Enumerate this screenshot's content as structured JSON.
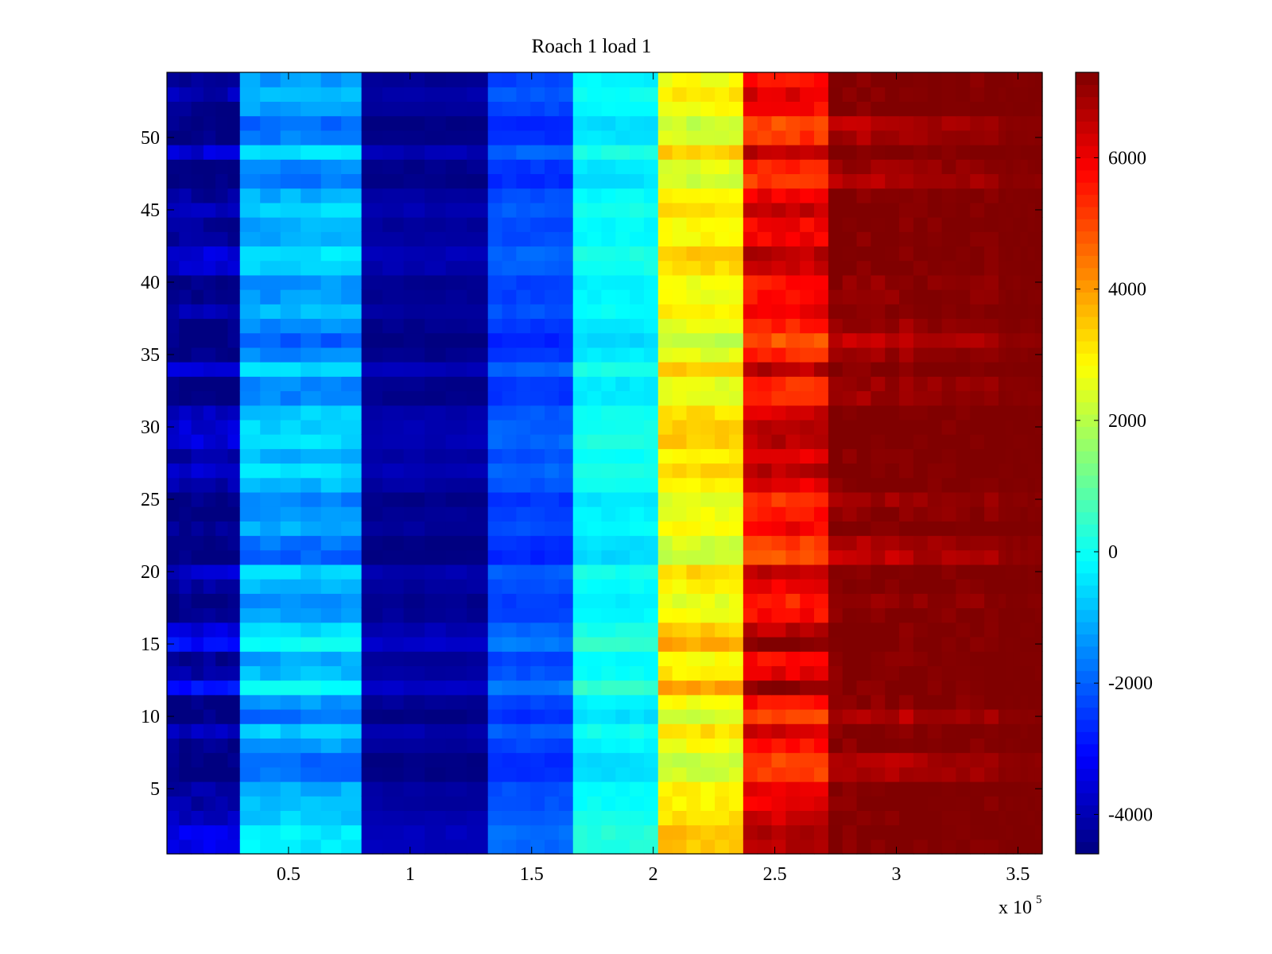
{
  "chart_data": {
    "type": "heatmap",
    "title": "Roach 1 load 1",
    "xlabel": "",
    "ylabel": "",
    "x_exponent_label": {
      "base": "x 10",
      "exponent": "5"
    },
    "xlim": [
      0,
      360000
    ],
    "ylim": [
      0.5,
      54.5
    ],
    "x_ticks": [
      {
        "value": 50000,
        "label": "0.5"
      },
      {
        "value": 100000,
        "label": "1"
      },
      {
        "value": 150000,
        "label": "1.5"
      },
      {
        "value": 200000,
        "label": "2"
      },
      {
        "value": 250000,
        "label": "2.5"
      },
      {
        "value": 300000,
        "label": "3"
      },
      {
        "value": 350000,
        "label": "3.5"
      }
    ],
    "y_ticks": [
      {
        "value": 5,
        "label": "5"
      },
      {
        "value": 10,
        "label": "10"
      },
      {
        "value": 15,
        "label": "15"
      },
      {
        "value": 20,
        "label": "20"
      },
      {
        "value": 25,
        "label": "25"
      },
      {
        "value": 30,
        "label": "30"
      },
      {
        "value": 35,
        "label": "35"
      },
      {
        "value": 40,
        "label": "40"
      },
      {
        "value": 45,
        "label": "45"
      },
      {
        "value": 50,
        "label": "50"
      }
    ],
    "colorbar": {
      "colormap": "jet",
      "clim": [
        -4600,
        7300
      ],
      "ticks": [
        {
          "value": -4000,
          "label": "-4000"
        },
        {
          "value": -2000,
          "label": "-2000"
        },
        {
          "value": 0,
          "label": "0"
        },
        {
          "value": 2000,
          "label": "2000"
        },
        {
          "value": 4000,
          "label": "4000"
        },
        {
          "value": 6000,
          "label": "6000"
        }
      ]
    },
    "rows": 54,
    "x_segments": [
      {
        "x_start": 0,
        "x_end": 30000,
        "base_value": -4400,
        "row_variation": 1600
      },
      {
        "x_start": 30000,
        "x_end": 80000,
        "base_value": -1200,
        "row_variation": 1400
      },
      {
        "x_start": 80000,
        "x_end": 132000,
        "base_value": -4300,
        "row_variation": 600
      },
      {
        "x_start": 132000,
        "x_end": 167000,
        "base_value": -2300,
        "row_variation": 700
      },
      {
        "x_start": 167000,
        "x_end": 202000,
        "base_value": -200,
        "row_variation": 700
      },
      {
        "x_start": 202000,
        "x_end": 237000,
        "base_value": 2800,
        "row_variation": 1200
      },
      {
        "x_start": 237000,
        "x_end": 272000,
        "base_value": 5800,
        "row_variation": 1600
      },
      {
        "x_start": 272000,
        "x_end": 307000,
        "base_value": 7300,
        "row_variation": 1400
      },
      {
        "x_start": 307000,
        "x_end": 342000,
        "base_value": 7300,
        "row_variation": 900
      },
      {
        "x_start": 342000,
        "x_end": 360000,
        "base_value": 7300,
        "row_variation": 300
      }
    ],
    "grid": false,
    "legend": "none"
  }
}
